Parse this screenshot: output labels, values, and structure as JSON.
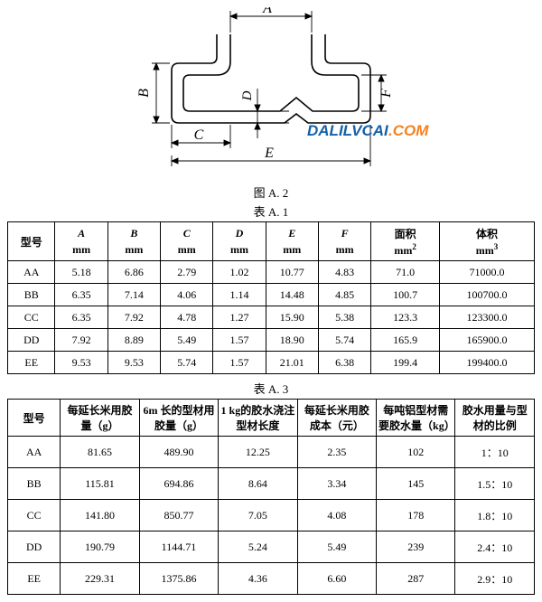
{
  "diagram": {
    "labels": {
      "A": "A",
      "B": "B",
      "C": "C",
      "D": "D",
      "E": "E",
      "F": "F"
    },
    "watermark_left": "DALILVCAI",
    "watermark_right": ".COM",
    "stroke": "#000000",
    "stroke_width": 1.6
  },
  "captions": {
    "fig": "图 A. 2",
    "tableA1": "表 A. 1",
    "tableA3": "表 A. 3"
  },
  "table1": {
    "col0": "型号",
    "letters": [
      "A",
      "B",
      "C",
      "D",
      "E",
      "F"
    ],
    "unit_mm": "mm",
    "area_label": "面积",
    "area_unit": "mm²",
    "vol_label": "体积",
    "vol_unit": "mm³",
    "rows": [
      {
        "m": "AA",
        "A": "5.18",
        "B": "6.86",
        "C": "2.79",
        "D": "1.02",
        "E": "10.77",
        "F": "4.83",
        "area": "71.0",
        "vol": "71000.0"
      },
      {
        "m": "BB",
        "A": "6.35",
        "B": "7.14",
        "C": "4.06",
        "D": "1.14",
        "E": "14.48",
        "F": "4.85",
        "area": "100.7",
        "vol": "100700.0"
      },
      {
        "m": "CC",
        "A": "6.35",
        "B": "7.92",
        "C": "4.78",
        "D": "1.27",
        "E": "15.90",
        "F": "5.38",
        "area": "123.3",
        "vol": "123300.0"
      },
      {
        "m": "DD",
        "A": "7.92",
        "B": "8.89",
        "C": "5.49",
        "D": "1.57",
        "E": "18.90",
        "F": "5.74",
        "area": "165.9",
        "vol": "165900.0"
      },
      {
        "m": "EE",
        "A": "9.53",
        "B": "9.53",
        "C": "5.74",
        "D": "1.57",
        "E": "21.01",
        "F": "6.38",
        "area": "199.4",
        "vol": "199400.0"
      }
    ]
  },
  "table2": {
    "col0": "型号",
    "headers": [
      "每延长米用胶量（g）",
      "6m 长的型材用胶量（g）",
      "1 kg的胶水浇注型材长度",
      "每延长米用胶成本（元）",
      "每吨铝型材需要胶水量（kg）",
      "胶水用量与型材的比例"
    ],
    "rows": [
      {
        "m": "AA",
        "c": [
          "81.65",
          "489.90",
          "12.25",
          "2.35",
          "102",
          "1：10"
        ]
      },
      {
        "m": "BB",
        "c": [
          "115.81",
          "694.86",
          "8.64",
          "3.34",
          "145",
          "1.5：10"
        ]
      },
      {
        "m": "CC",
        "c": [
          "141.80",
          "850.77",
          "7.05",
          "4.08",
          "178",
          "1.8：10"
        ]
      },
      {
        "m": "DD",
        "c": [
          "190.79",
          "1144.71",
          "5.24",
          "5.49",
          "239",
          "2.4：10"
        ]
      },
      {
        "m": "EE",
        "c": [
          "229.31",
          "1375.86",
          "4.36",
          "6.60",
          "287",
          "2.9：10"
        ]
      }
    ]
  }
}
